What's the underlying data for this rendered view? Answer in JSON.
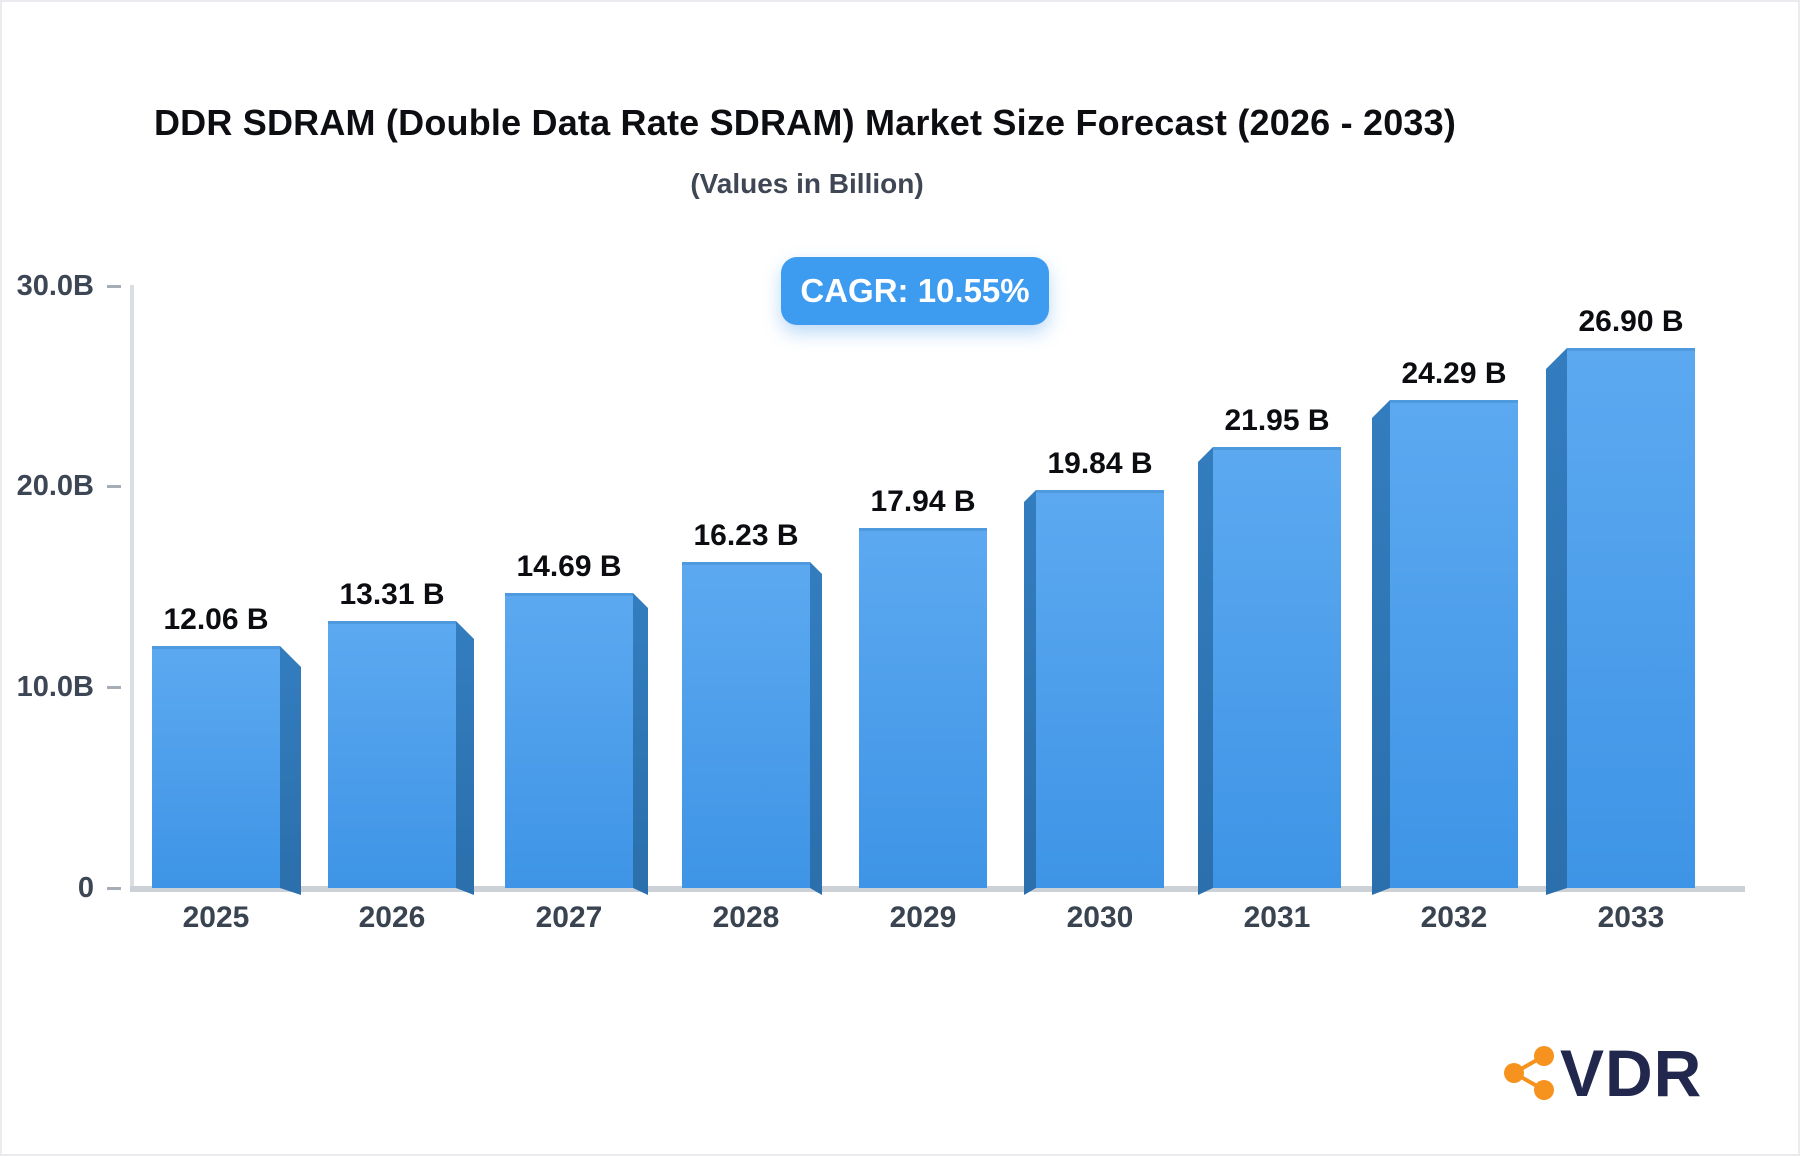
{
  "title": "DDR SDRAM (Double Data Rate SDRAM) Market Size Forecast (2026 - 2033)",
  "subtitle": "(Values in Billion)",
  "badge": {
    "label": "CAGR: 10.55%",
    "color": "#3d9bf0"
  },
  "logo": {
    "text": "VDR",
    "icon": "share-network-icon",
    "icon_color": "#f6921e",
    "text_color": "#22274e"
  },
  "chart_data": {
    "type": "bar",
    "title": "DDR SDRAM (Double Data Rate SDRAM) Market Size Forecast (2026 - 2033)",
    "subtitle": "(Values in Billion)",
    "categories": [
      "2025",
      "2026",
      "2027",
      "2028",
      "2029",
      "2030",
      "2031",
      "2032",
      "2033"
    ],
    "values": [
      12.06,
      13.31,
      14.69,
      16.23,
      17.94,
      19.84,
      21.95,
      24.29,
      26.9
    ],
    "value_labels": [
      "12.06 B",
      "13.31 B",
      "14.69 B",
      "16.23 B",
      "17.94 B",
      "19.84 B",
      "21.95 B",
      "24.29 B",
      "26.90 B"
    ],
    "xlabel": "",
    "ylabel": "",
    "y_ticks": [
      "30.0B",
      "20.0B",
      "10.0B",
      "0"
    ],
    "y_tick_values": [
      30,
      20,
      10,
      0
    ],
    "ylim": [
      0,
      30
    ],
    "grid": false,
    "legend": null,
    "annotation": "CAGR: 10.55%",
    "bar_color_top": "#5ca9f0",
    "bar_color_bottom": "#3e94e6",
    "bar_side_top": "#337dbf",
    "bar_side_bottom": "#2b6fac"
  }
}
